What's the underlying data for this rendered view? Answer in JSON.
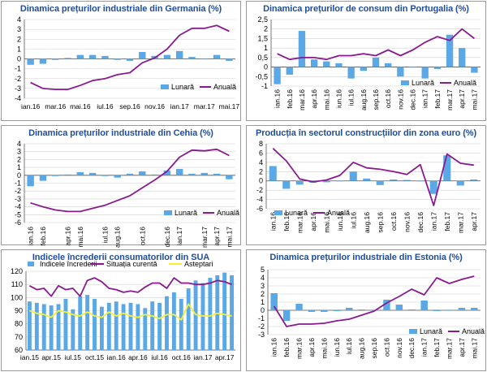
{
  "colors": {
    "bar": "#5aa9e6",
    "line1": "#8a1a8f",
    "line2": "#f3ef3a",
    "title": "#1f4e9a",
    "grid": "#d0d0d0"
  },
  "chart_data": [
    {
      "id": "de",
      "type": "bar+line",
      "title": "Dinamica prețurilor industriale din Germania (%)",
      "ylim": [
        -4,
        4
      ],
      "yticks": [
        -4,
        -3,
        -2,
        -1,
        0,
        1,
        2,
        3,
        4
      ],
      "categories": [
        "ian.16",
        "feb.16",
        "mar.16",
        "apr.16",
        "mai.16",
        "iun.16",
        "iul.16",
        "aug.16",
        "sep.16",
        "oct.16",
        "nov.16",
        "dec.16",
        "ian.17",
        "feb.17",
        "mar.17",
        "apr.17",
        "mai.17"
      ],
      "xtick_labels": [
        "ian.16",
        "mar.16",
        "mai.16",
        "iul.16",
        "sep.16",
        "nov.16",
        "ian.17",
        "mar.17",
        "mai.17"
      ],
      "bar_series": {
        "name": "Lunară",
        "values": [
          -0.6,
          -0.5,
          -0.1,
          0.1,
          0.4,
          0.4,
          0.3,
          -0.1,
          -0.2,
          0.7,
          0.3,
          0.4,
          0.8,
          0.2,
          0.0,
          0.4,
          -0.2
        ]
      },
      "line_series": [
        {
          "name": "Anuală",
          "values": [
            -2.4,
            -3.0,
            -3.1,
            -3.1,
            -2.7,
            -2.2,
            -2.0,
            -1.6,
            -1.4,
            -0.4,
            0.1,
            1.0,
            2.4,
            3.1,
            3.1,
            3.4,
            2.8
          ]
        }
      ],
      "legend": "lower-right"
    },
    {
      "id": "pt",
      "type": "bar+line",
      "title": "Dinamica prețurilor de consum din Portugalia (%)",
      "ylim": [
        -1,
        2.5
      ],
      "yticks": [
        -1,
        -0.5,
        0,
        0.5,
        1,
        1.5,
        2,
        2.5
      ],
      "ytick_labels": [
        "-1",
        "-0,5",
        "0",
        "0,5",
        "1",
        "1,5",
        "2",
        "2,5"
      ],
      "categories": [
        "ian.16",
        "feb.16",
        "mar.16",
        "apr.16",
        "mai.16",
        "iun.16",
        "iul.16",
        "aug.16",
        "sep.16",
        "oct.16",
        "nov.16",
        "dec.16",
        "ian.17",
        "feb.17",
        "mar.17",
        "apr.17",
        "mai.17"
      ],
      "xtick_labels": [
        "ian.16",
        "feb.16",
        "mar.16",
        "apr.16",
        "mai.16",
        "iun.16",
        "iul.16",
        "aug.16",
        "sep.16",
        "oct.16",
        "nov.16",
        "dec.16",
        "ian.17",
        "feb.17",
        "mar.17",
        "apr.17",
        "mai.17"
      ],
      "bar_series": {
        "name": "Lunară",
        "values": [
          -0.9,
          -0.4,
          1.9,
          0.4,
          0.3,
          0.2,
          -0.6,
          -0.2,
          0.5,
          0.2,
          -0.5,
          0.0,
          -0.6,
          -0.1,
          1.7,
          1.0,
          -0.3
        ]
      },
      "line_series": [
        {
          "name": "Anuală",
          "values": [
            0.7,
            0.4,
            0.5,
            0.5,
            0.4,
            0.6,
            0.6,
            0.7,
            0.6,
            0.9,
            0.6,
            0.9,
            1.3,
            1.6,
            1.4,
            2.0,
            1.5
          ]
        }
      ],
      "legend": "lower-right"
    },
    {
      "id": "cz",
      "type": "bar+line",
      "title": "Dinamica prețurilor industriale din Cehia (%)",
      "ylim": [
        -6,
        4
      ],
      "yticks": [
        -6,
        -5,
        -4,
        -3,
        -2,
        -1,
        0,
        1,
        2,
        3,
        4
      ],
      "categories": [
        "ian.16",
        "feb.16",
        "mar.16",
        "apr.16",
        "mai.16",
        "iun.16",
        "iul.16",
        "aug.16",
        "sep.16",
        "oct.16",
        "nov.16",
        "dec.16",
        "ian.17",
        "feb.17",
        "mar.17",
        "apr.17",
        "mai.17"
      ],
      "xtick_labels": [
        "ian.16",
        "feb.16",
        "apr.16",
        "mai.16",
        "iul.16",
        "aug.16",
        "oct.16",
        "dec.16",
        "ian.17",
        "mar.17",
        "apr.17",
        "mai.17"
      ],
      "bar_series": {
        "name": "Lunară",
        "values": [
          -1.4,
          -0.7,
          -0.1,
          0.1,
          0.4,
          0.3,
          -0.1,
          -0.3,
          0.2,
          0.5,
          0.1,
          0.6,
          0.8,
          0.2,
          0.3,
          0.2,
          -0.5
        ]
      },
      "line_series": [
        {
          "name": "Anuală",
          "values": [
            -3.5,
            -4.0,
            -4.4,
            -4.6,
            -4.6,
            -4.2,
            -3.8,
            -3.2,
            -2.6,
            -1.6,
            -0.6,
            0.5,
            2.3,
            3.2,
            3.1,
            3.3,
            2.5
          ]
        }
      ],
      "legend": "lower-right"
    },
    {
      "id": "ez",
      "type": "bar+line",
      "title": "Producția în sectorul construcțiilor din zona euro (%)",
      "ylim": [
        -6,
        8
      ],
      "yticks": [
        -6,
        -4,
        -2,
        0,
        2,
        4,
        6,
        8
      ],
      "categories": [
        "ian.16",
        "feb.16",
        "mar.16",
        "apr.16",
        "mai.16",
        "iun.16",
        "iul.16",
        "aug.16",
        "sep.16",
        "oct.16",
        "nov.16",
        "dec.16",
        "ian.17",
        "feb.17",
        "mar.17",
        "apr.17"
      ],
      "xtick_labels": [
        "ian.16",
        "feb.16",
        "mar.16",
        "apr.16",
        "mai.16",
        "iun.16",
        "iul.16",
        "aug.16",
        "sep.16",
        "oct.16",
        "nov.16",
        "dec.16",
        "ian.17",
        "feb.17",
        "mar.17",
        "apr.17"
      ],
      "bar_series": {
        "name": "Lunară",
        "values": [
          3.2,
          -1.7,
          -0.8,
          -0.4,
          -0.3,
          0.0,
          2.0,
          0.5,
          -0.9,
          0.3,
          0.2,
          0.0,
          -2.8,
          5.5,
          -1.0,
          0.3
        ]
      },
      "line_series": [
        {
          "name": "Anuală",
          "values": [
            7.0,
            4.3,
            0.4,
            -0.2,
            0.2,
            1.2,
            4.0,
            2.8,
            2.5,
            2.0,
            1.4,
            3.5,
            -5.3,
            5.8,
            3.8,
            3.4
          ]
        }
      ],
      "legend": "lower-left"
    },
    {
      "id": "us",
      "type": "bar+line",
      "title": "Indicele încrederii consumatorilor din SUA",
      "ylim": [
        60,
        120
      ],
      "yticks": [
        60,
        70,
        80,
        90,
        100,
        110,
        120
      ],
      "categories": [
        "ian.15",
        "feb.15",
        "mar.15",
        "apr.15",
        "mai.15",
        "iun.15",
        "iul.15",
        "aug.15",
        "sep.15",
        "oct.15",
        "nov.15",
        "dec.15",
        "ian.16",
        "feb.16",
        "mar.16",
        "apr.16",
        "mai.16",
        "iun.16",
        "iul.16",
        "aug.16",
        "sep.16",
        "oct.16",
        "nov.16",
        "dec.16",
        "ian.17",
        "feb.17",
        "mar.17",
        "apr.17",
        "mai.17"
      ],
      "xtick_labels": [
        "ian.15",
        "apr.15",
        "iul.15",
        "oct.15",
        "ian.16",
        "apr.16",
        "iul.16",
        "oct.16",
        "ian.17",
        "apr.17"
      ],
      "bar_series": {
        "name": "Indicele încrederii",
        "values": [
          97,
          96,
          95,
          94,
          95,
          99,
          91,
          101,
          102,
          99,
          93,
          96,
          97,
          95,
          96,
          95,
          92,
          97,
          96,
          101,
          104,
          99,
          107,
          113,
          111,
          115,
          117,
          119,
          117
        ]
      },
      "line_series": [
        {
          "name": "Situația curentă",
          "values": [
            109,
            106,
            107,
            101,
            109,
            106,
            107,
            101,
            113,
            115,
            112,
            107,
            106,
            104,
            105,
            104,
            108,
            111,
            111,
            107,
            115,
            111,
            111,
            110,
            110,
            111,
            113,
            112,
            110
          ]
        },
        {
          "name": "Asteptari",
          "values": [
            90,
            88,
            87,
            85,
            90,
            89,
            87,
            86,
            89,
            86,
            85,
            89,
            86,
            88,
            86,
            85,
            87,
            86,
            84,
            87,
            87,
            83,
            95,
            87,
            86,
            86,
            88,
            87,
            86
          ]
        }
      ],
      "legend": "top"
    },
    {
      "id": "ee",
      "type": "bar+line",
      "title": "Dinamica prețurilor industriale din Estonia (%)",
      "ylim": [
        -3,
        5
      ],
      "yticks": [
        -3,
        -2,
        -1,
        0,
        1,
        2,
        3,
        4,
        5
      ],
      "categories": [
        "ian.16",
        "feb.16",
        "mar.16",
        "apr.16",
        "mai.16",
        "iun.16",
        "iul.16",
        "aug.16",
        "sep.16",
        "oct.16",
        "nov.16",
        "dec.16",
        "ian.17",
        "feb.17",
        "mar.17",
        "apr.17",
        "mai.17"
      ],
      "xtick_labels": [
        "ian.16",
        "feb.16",
        "mar.16",
        "apr.16",
        "mai.16",
        "iun.16",
        "iul.16",
        "aug.16",
        "sep.16",
        "oct.16",
        "nov.16",
        "dec.16",
        "ian.17",
        "feb.17",
        "mar.17",
        "apr.17",
        "mai.17"
      ],
      "bar_series": {
        "name": "Lunară",
        "values": [
          2.1,
          -1.3,
          0.8,
          -0.2,
          -0.2,
          -0.1,
          0.3,
          0.1,
          0.0,
          1.3,
          0.7,
          0.1,
          1.2,
          -0.1,
          0.0,
          0.3,
          0.3
        ]
      },
      "line_series": [
        {
          "name": "Anuală",
          "values": [
            0.5,
            -2.0,
            -1.7,
            -1.7,
            -1.6,
            -1.3,
            -1.1,
            -0.6,
            -0.1,
            0.9,
            1.7,
            2.6,
            1.9,
            4.0,
            3.3,
            3.8,
            4.2
          ]
        }
      ],
      "legend": "lower-right"
    }
  ]
}
